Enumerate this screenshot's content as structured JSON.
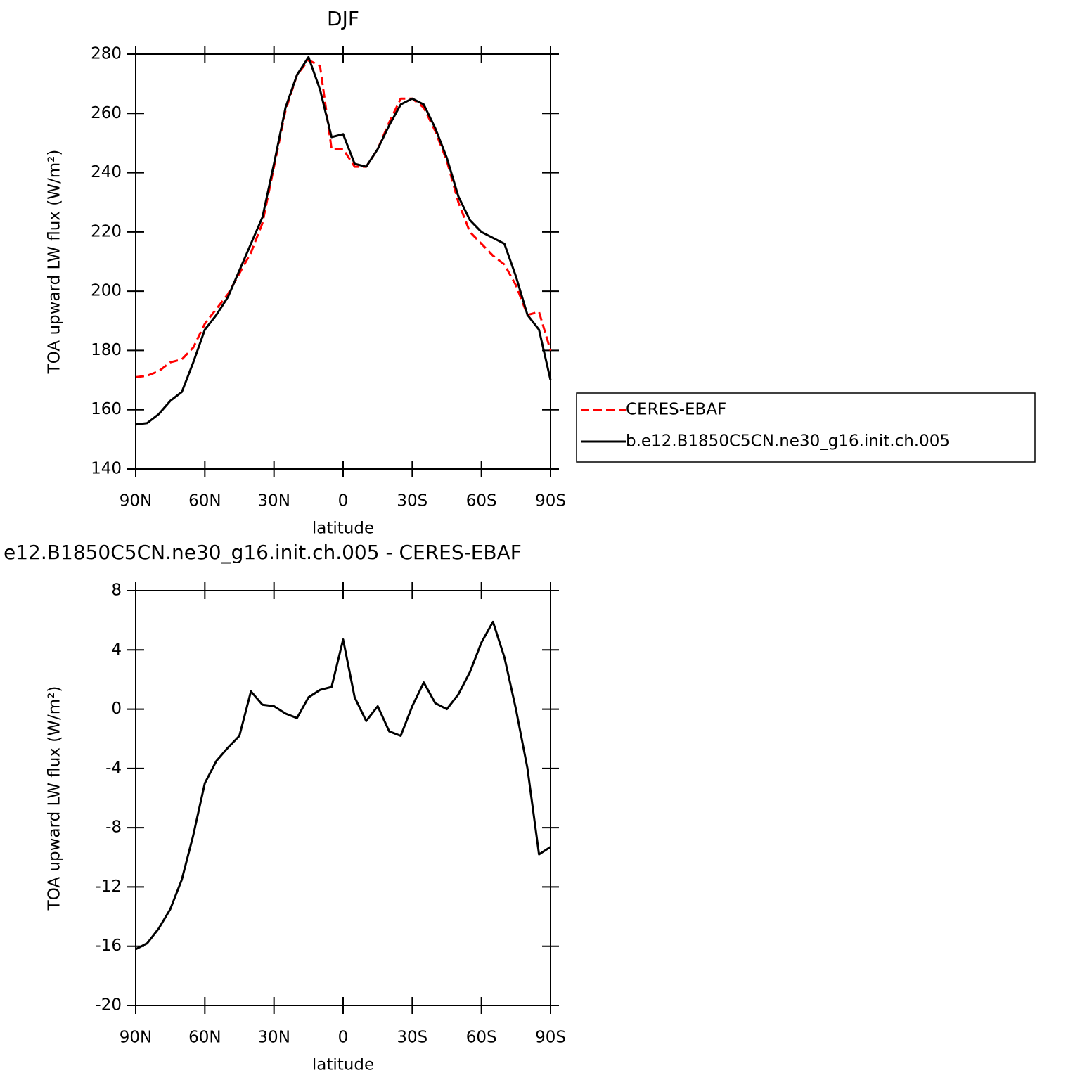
{
  "chart_data": [
    {
      "type": "line",
      "title": "DJF",
      "xlabel": "latitude",
      "ylabel": "TOA upward LW flux (W/m²)",
      "x": [
        90,
        85,
        80,
        75,
        70,
        65,
        60,
        55,
        50,
        45,
        40,
        35,
        30,
        25,
        20,
        15,
        10,
        5,
        0,
        -5,
        -10,
        -15,
        -20,
        -25,
        -30,
        -35,
        -40,
        -45,
        -50,
        -55,
        -60,
        -65,
        -70,
        -75,
        -80,
        -85,
        -90
      ],
      "series": [
        {
          "name": "CERES-EBAF",
          "color": "#ff0000",
          "style": "dashed",
          "values": [
            171,
            171.5,
            173,
            176,
            177,
            181,
            189,
            194,
            199,
            206,
            213,
            223,
            242,
            261,
            273,
            278,
            276,
            248,
            248,
            242,
            242,
            248,
            257,
            265,
            265,
            262,
            254,
            244,
            230,
            220,
            216,
            212,
            209,
            202,
            192,
            193,
            180
          ]
        },
        {
          "name": "b.e12.B1850C5CN.ne30_g16.init.ch.005",
          "color": "#000000",
          "style": "solid",
          "values": [
            155,
            155.5,
            158.5,
            163,
            166,
            176,
            187,
            192,
            198,
            207,
            216,
            225,
            243,
            262,
            273,
            279,
            268,
            252,
            253,
            243,
            242,
            248,
            256,
            263,
            265,
            263,
            255,
            245,
            232,
            224,
            220,
            218,
            216,
            205,
            192,
            187,
            170
          ]
        }
      ],
      "xlim": [
        90,
        -90
      ],
      "xticks": [
        {
          "value": 90,
          "label": "90N"
        },
        {
          "value": 60,
          "label": "60N"
        },
        {
          "value": 30,
          "label": "30N"
        },
        0,
        {
          "value": -30,
          "label": "30S"
        },
        {
          "value": -60,
          "label": "60S"
        },
        {
          "value": -90,
          "label": "90S"
        }
      ],
      "ylim": [
        140,
        280
      ],
      "yticks": [
        140,
        160,
        180,
        200,
        220,
        240,
        260,
        280
      ],
      "legend": "right"
    },
    {
      "type": "line",
      "title": "e12.B1850C5CN.ne30_g16.init.ch.005 - CERES-EBAF",
      "xlabel": "latitude",
      "ylabel": "TOA upward LW flux (W/m²)",
      "x": [
        90,
        85,
        80,
        75,
        70,
        65,
        60,
        55,
        50,
        45,
        40,
        35,
        30,
        25,
        20,
        15,
        10,
        5,
        0,
        -5,
        -10,
        -15,
        -20,
        -25,
        -30,
        -35,
        -40,
        -45,
        -50,
        -55,
        -60,
        -65,
        -70,
        -75,
        -80,
        -85,
        -90
      ],
      "series": [
        {
          "color": "#000000",
          "style": "solid",
          "values": [
            -16.2,
            -15.8,
            -14.8,
            -13.5,
            -11.5,
            -8.5,
            -5,
            -3.5,
            -2.6,
            -1.8,
            1.2,
            0.3,
            0.2,
            -0.3,
            -0.6,
            0.8,
            1.3,
            1.5,
            4.7,
            0.8,
            -0.8,
            0.2,
            -1.5,
            -1.8,
            0.2,
            1.8,
            0.4,
            0,
            1,
            2.5,
            4.5,
            5.9,
            3.5,
            0,
            -4,
            -9.8,
            -9.3
          ]
        }
      ],
      "xlim": [
        90,
        -90
      ],
      "xticks": [
        {
          "value": 90,
          "label": "90N"
        },
        {
          "value": 60,
          "label": "60N"
        },
        {
          "value": 30,
          "label": "30N"
        },
        0,
        {
          "value": -30,
          "label": "30S"
        },
        {
          "value": -60,
          "label": "60S"
        },
        {
          "value": -90,
          "label": "90S"
        }
      ],
      "ylim": [
        -20,
        8
      ],
      "yticks": [
        -20,
        -16,
        -12,
        -8,
        -4,
        0,
        4,
        8
      ]
    }
  ]
}
